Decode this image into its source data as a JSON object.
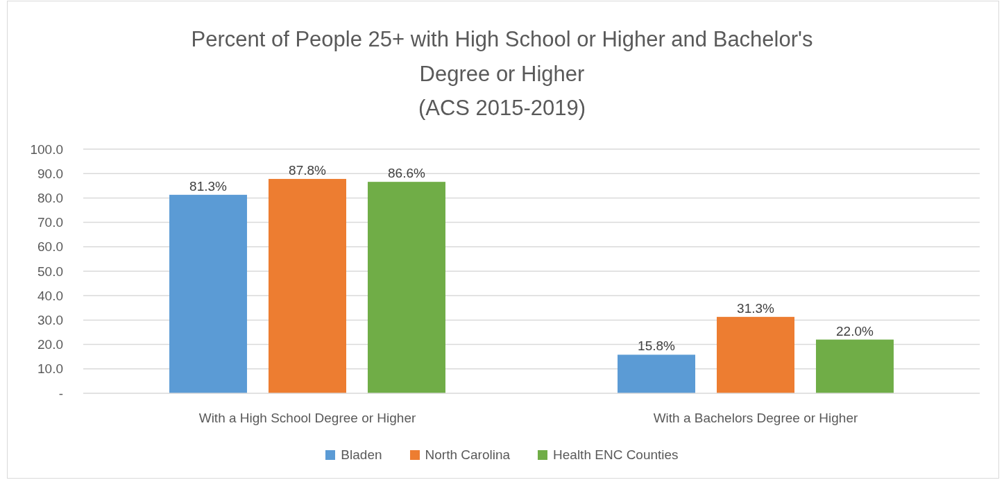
{
  "chart_data": {
    "type": "bar",
    "title": "Percent of People 25+ with High School or Higher and Bachelor's\nDegree or Higher\n(ACS 2015-2019)",
    "categories": [
      "With a High School Degree or Higher",
      "With a Bachelors Degree or Higher"
    ],
    "series": [
      {
        "name": "Bladen",
        "color": "#5b9bd5",
        "values": [
          81.3,
          15.8
        ],
        "value_labels": [
          "81.3%",
          "15.8%"
        ]
      },
      {
        "name": "North Carolina",
        "color": "#ed7d31",
        "values": [
          87.8,
          31.3
        ],
        "value_labels": [
          "87.8%",
          "31.3%"
        ]
      },
      {
        "name": "Health ENC Counties",
        "color": "#70ad47",
        "values": [
          86.6,
          22.0
        ],
        "value_labels": [
          "86.6%",
          "22.0%"
        ]
      }
    ],
    "ylim": [
      0,
      100
    ],
    "yticks": [
      {
        "value": 0,
        "label": "-"
      },
      {
        "value": 10,
        "label": "10.0"
      },
      {
        "value": 20,
        "label": "20.0"
      },
      {
        "value": 30,
        "label": "30.0"
      },
      {
        "value": 40,
        "label": "40.0"
      },
      {
        "value": 50,
        "label": "50.0"
      },
      {
        "value": 60,
        "label": "60.0"
      },
      {
        "value": 70,
        "label": "70.0"
      },
      {
        "value": 80,
        "label": "80.0"
      },
      {
        "value": 90,
        "label": "90.0"
      },
      {
        "value": 100,
        "label": "100.0"
      }
    ],
    "grid": "y",
    "legend": "bottom"
  }
}
